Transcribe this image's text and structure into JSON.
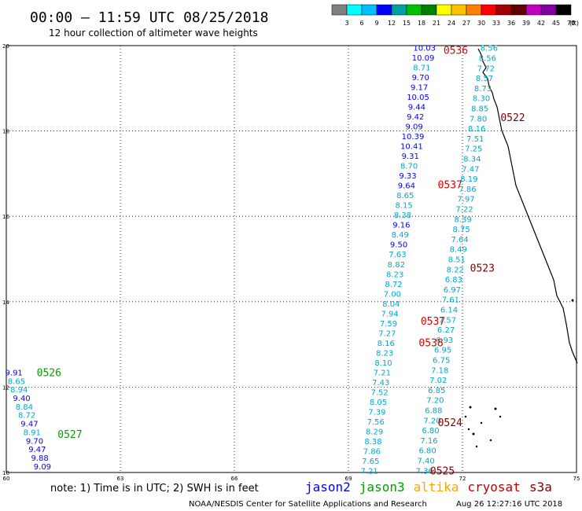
{
  "header": {
    "title": "00:00 – 11:59 UTC 08/25/2018",
    "subtitle": "12 hour collection of altimeter wave heights"
  },
  "colorbar": {
    "colors": [
      "#808080",
      "#00ffff",
      "#00bfff",
      "#0000ff",
      "#00a0a0",
      "#00c000",
      "#008000",
      "#ffff00",
      "#ffc000",
      "#ff8000",
      "#ff0000",
      "#a00000",
      "#600000",
      "#c000c0",
      "#8000a0",
      "#000000"
    ],
    "labels": [
      "3",
      "6",
      "9",
      "12",
      "15",
      "18",
      "21",
      "24",
      "27",
      "30",
      "33",
      "36",
      "39",
      "42",
      "45",
      "70",
      "(ft)"
    ]
  },
  "footer": {
    "note": "note: 1) Time is in UTC; 2) SWH is in feet",
    "credit": "NOAA/NESDIS Center for Satellite Applications and Research",
    "timestamp": "Aug 26 12:27:16 UTC 2018"
  },
  "legend": [
    {
      "name": "jason2",
      "color": "#0000ff"
    },
    {
      "name": "jason3",
      "color": "#00a000"
    },
    {
      "name": "altika",
      "color": "#ffa500"
    },
    {
      "name": "cryosat",
      "color": "#c00000"
    },
    {
      "name": "s3a",
      "color": "#800000"
    }
  ],
  "chart_data": {
    "type": "scatter",
    "title": "00:00 – 11:59 UTC 08/25/2018",
    "xlim": [
      60,
      75
    ],
    "ylim": [
      10,
      20
    ],
    "xticks": [
      "60",
      "63",
      "66",
      "69",
      "72",
      "75"
    ],
    "yticks": [
      "10",
      "12",
      "14",
      "16",
      "18",
      "20"
    ],
    "grid": true,
    "tracks": [
      {
        "satellite": "jason2",
        "color": "#0000ff",
        "lat0": 19.95,
        "lat1": 10.05,
        "lon0": 71.0,
        "lon1": 69.55,
        "values": [
          "10.03",
          "10.09",
          "8.71",
          "9.70",
          "9.17",
          "10.05",
          "9.44",
          "9.42",
          "9.09",
          "10.39",
          "10.41",
          "9.31",
          "8.70",
          "9.33",
          "9.64",
          "8.65",
          "8.15",
          "8.38",
          "9.16",
          "8.49",
          "9.50",
          "7.63",
          "8.82",
          "8.23",
          "8.72",
          "7.00",
          "8.04",
          "7.94",
          "7.59",
          "7.27",
          "8.16",
          "8.23",
          "8.10",
          "7.21",
          "7.43",
          "7.52",
          "8.05",
          "7.39",
          "7.56",
          "8.29",
          "8.38",
          "7.86",
          "7.65",
          "7.21"
        ]
      },
      {
        "satellite": "jason2",
        "color": "#0000ff",
        "lat0": 12.35,
        "lat1": 10.15,
        "lon0": 60.2,
        "lon1": 60.95,
        "values": [
          "9.91",
          "8.65",
          "8.94",
          "9.40",
          "8.84",
          "8.72",
          "9.47",
          "8.91",
          "9.70",
          "9.47",
          "9.88",
          "9.09"
        ]
      },
      {
        "satellite": "jason2",
        "color": "#0000ff",
        "lat0": 19.95,
        "lat1": 10.05,
        "lon0": 72.7,
        "lon1": 71.0,
        "values": [
          "8.56",
          "8.56",
          "7.72",
          "8.57",
          "8.73",
          "8.30",
          "8.85",
          "7.80",
          "8.16",
          "7.51",
          "7.25",
          "8.34",
          "7.47",
          "8.19",
          "7.86",
          "7.97",
          "7.22",
          "8.39",
          "8.75",
          "7.64",
          "8.49",
          "8.51",
          "8.22",
          "6.83",
          "6.97",
          "7.61",
          "6.14",
          "7.57",
          "6.27",
          "6.93",
          "6.95",
          "6.75",
          "7.18",
          "7.02",
          "6.85",
          "7.20",
          "6.88",
          "7.20",
          "6.80",
          "7.16",
          "6.80",
          "7.40",
          "7.36"
        ]
      }
    ],
    "pass_labels": [
      {
        "text": "0536",
        "lon": 71.5,
        "lat": 19.9,
        "color": "#e00000"
      },
      {
        "text": "0522",
        "lon": 73.0,
        "lat": 18.32,
        "color": "#800000"
      },
      {
        "text": "0537",
        "lon": 71.35,
        "lat": 16.75,
        "color": "#e00000"
      },
      {
        "text": "0523",
        "lon": 72.2,
        "lat": 14.8,
        "color": "#800000"
      },
      {
        "text": "0537",
        "lon": 70.9,
        "lat": 13.55,
        "color": "#e00000"
      },
      {
        "text": "0538",
        "lon": 70.85,
        "lat": 13.05,
        "color": "#e00000"
      },
      {
        "text": "0524",
        "lon": 71.35,
        "lat": 11.18,
        "color": "#800000"
      },
      {
        "text": "0525",
        "lon": 71.15,
        "lat": 10.05,
        "color": "#800000"
      },
      {
        "text": "0526",
        "lon": 60.8,
        "lat": 12.35,
        "color": "#00a000"
      },
      {
        "text": "0527",
        "lon": 61.35,
        "lat": 10.9,
        "color": "#00a000"
      }
    ]
  }
}
